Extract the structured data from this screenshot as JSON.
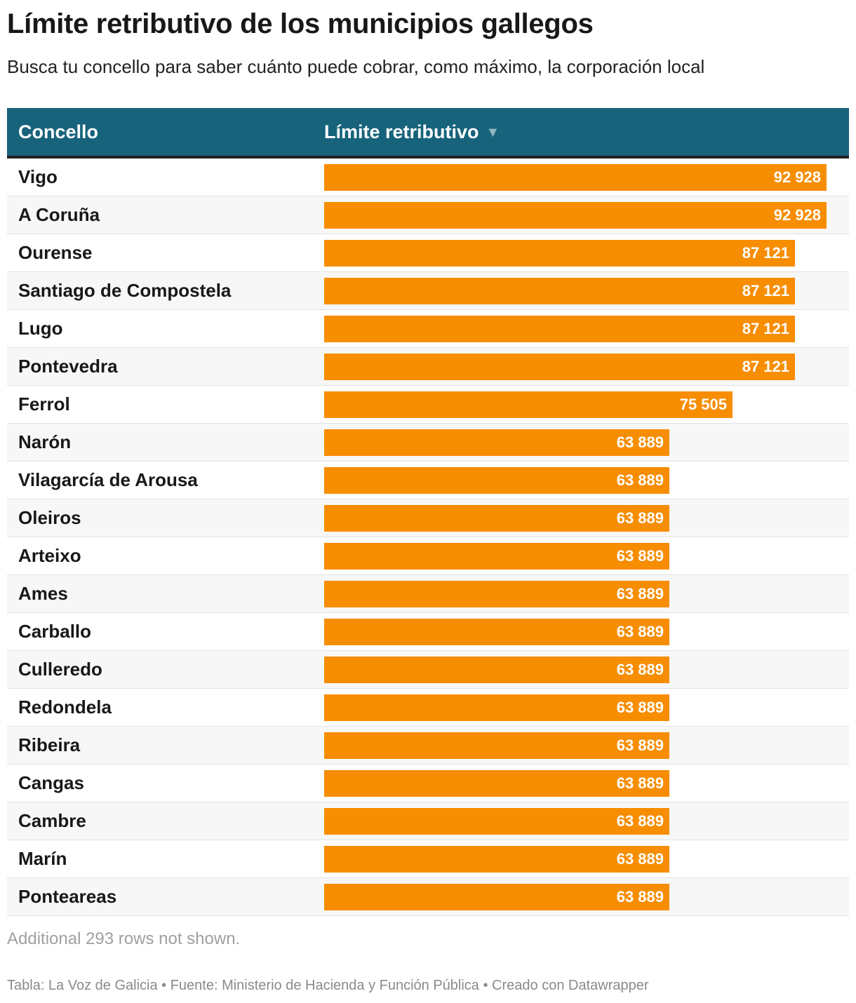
{
  "header": {
    "title": "Límite retributivo de los municipios gallegos",
    "subtitle": "Busca tu concello para saber cuánto puede cobrar, como máximo, la corporación local"
  },
  "table": {
    "col_name": "Concello",
    "col_value": "Límite retributivo",
    "sort_icon": "▼"
  },
  "chart_data": {
    "type": "bar",
    "title": "Límite retributivo de los municipios gallegos",
    "xlabel": "",
    "ylabel": "Límite retributivo",
    "xlim": [
      0,
      100000
    ],
    "categories": [
      "Vigo",
      "A Coruña",
      "Ourense",
      "Santiago de Compostela",
      "Lugo",
      "Pontevedra",
      "Ferrol",
      "Narón",
      "Vilagarcía de Arousa",
      "Oleiros",
      "Arteixo",
      "Ames",
      "Carballo",
      "Culleredo",
      "Redondela",
      "Ribeira",
      "Cangas",
      "Cambre",
      "Marín",
      "Ponteareas"
    ],
    "values": [
      92928,
      92928,
      87121,
      87121,
      87121,
      87121,
      75505,
      63889,
      63889,
      63889,
      63889,
      63889,
      63889,
      63889,
      63889,
      63889,
      63889,
      63889,
      63889,
      63889
    ],
    "labels": [
      "92 928",
      "92 928",
      "87 121",
      "87 121",
      "87 121",
      "87 121",
      "75 505",
      "63 889",
      "63 889",
      "63 889",
      "63 889",
      "63 889",
      "63 889",
      "63 889",
      "63 889",
      "63 889",
      "63 889",
      "63 889",
      "63 889",
      "63 889"
    ]
  },
  "notes": "Additional 293 rows not shown.",
  "footer": "Tabla: La Voz de Galicia • Fuente: Ministerio de Hacienda y Función Pública • Creado con Datawrapper",
  "colors": {
    "header_bg": "#17637b",
    "bar": "#f78d00"
  }
}
